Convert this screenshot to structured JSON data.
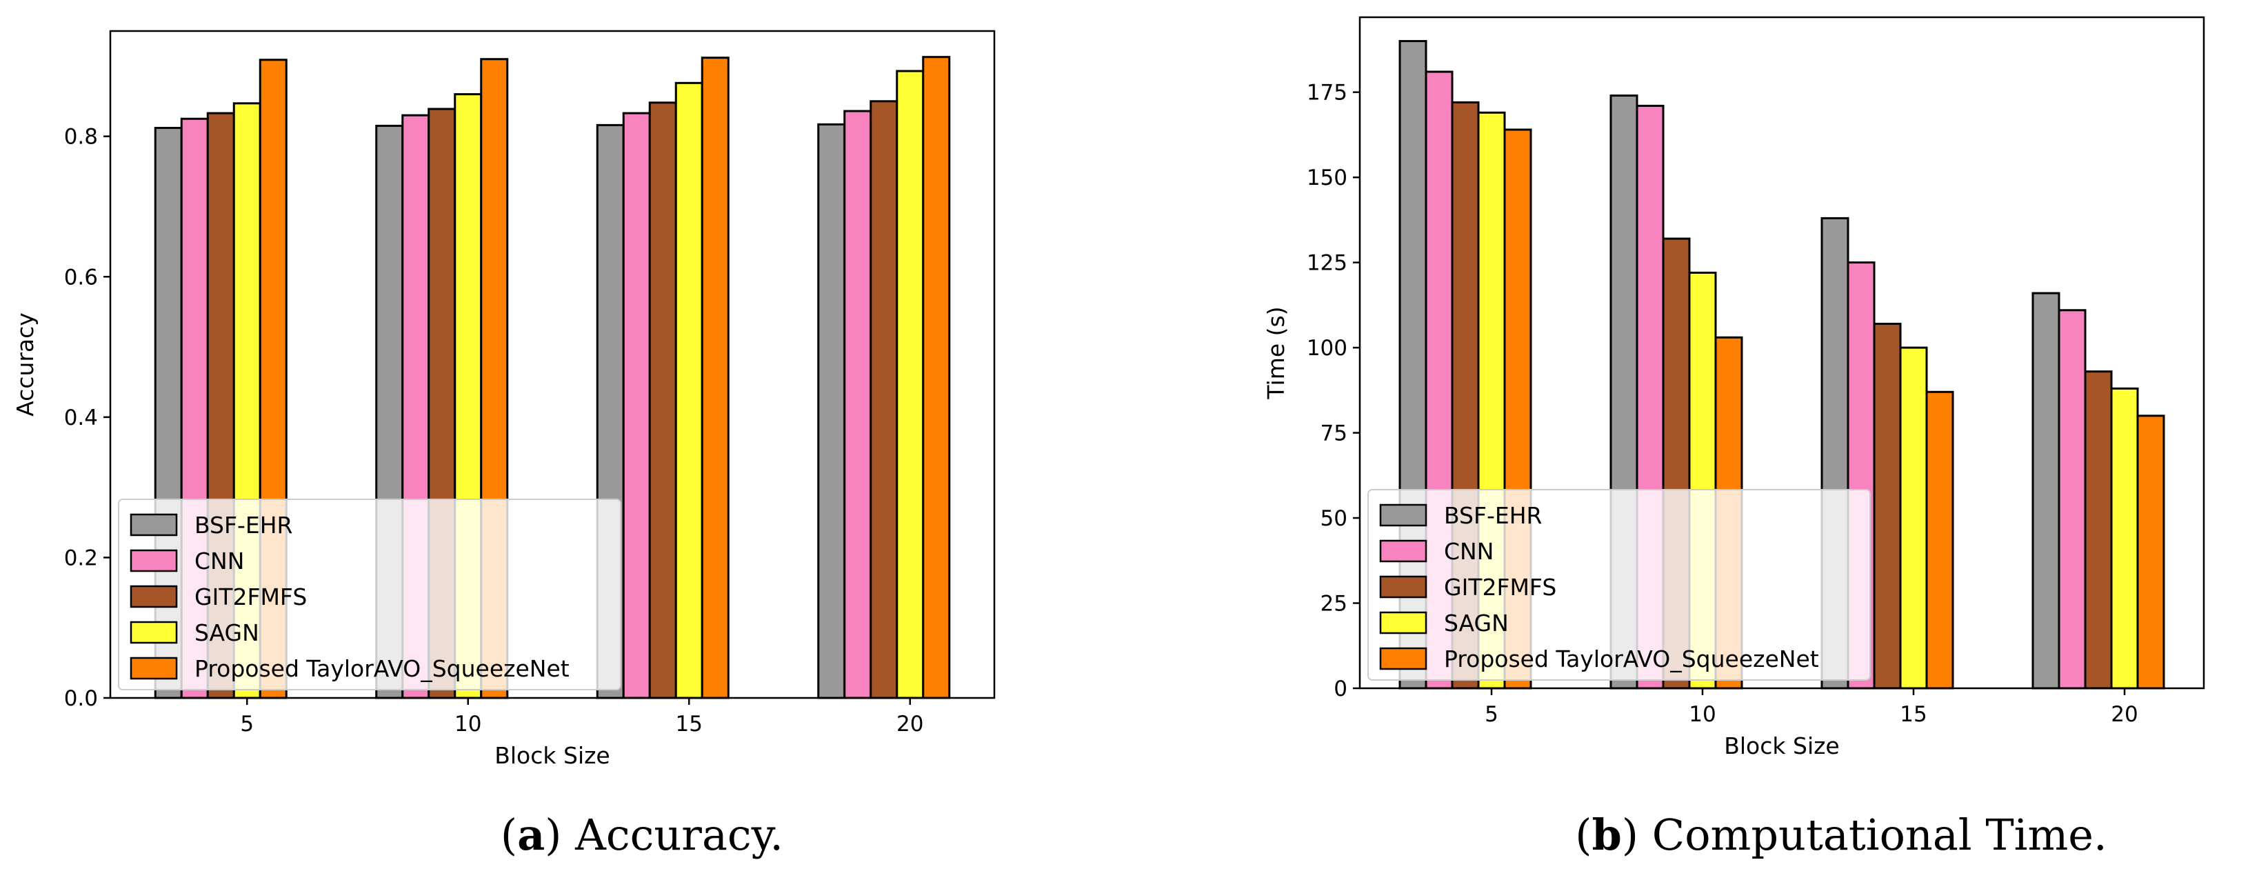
{
  "series_colors": [
    "#999999",
    "#f783bf",
    "#a65528",
    "#ffff33",
    "#ff7f00"
  ],
  "chart_data": [
    {
      "type": "bar",
      "panel": "a",
      "caption_letter": "a",
      "caption_text": "Accuracy.",
      "xlabel": "Block Size",
      "ylabel": "Accuracy",
      "categories": [
        "5",
        "10",
        "15",
        "20"
      ],
      "ylim": [
        0,
        0.95
      ],
      "yticks": [
        0.0,
        0.2,
        0.4,
        0.6,
        0.8
      ],
      "ytick_labels": [
        "0.0",
        "0.2",
        "0.4",
        "0.6",
        "0.8"
      ],
      "legend_position": "lower-left",
      "series": [
        {
          "name": "BSF-EHR",
          "values": [
            0.812,
            0.815,
            0.816,
            0.817
          ]
        },
        {
          "name": "CNN",
          "values": [
            0.825,
            0.83,
            0.833,
            0.836
          ]
        },
        {
          "name": "GIT2FMFS",
          "values": [
            0.833,
            0.839,
            0.848,
            0.85
          ]
        },
        {
          "name": "SAGN",
          "values": [
            0.847,
            0.86,
            0.876,
            0.893
          ]
        },
        {
          "name": "Proposed TaylorAVO_SqueezeNet",
          "values": [
            0.909,
            0.91,
            0.912,
            0.913
          ]
        }
      ]
    },
    {
      "type": "bar",
      "panel": "b",
      "caption_letter": "b",
      "caption_text": "Computational Time.",
      "xlabel": "Block Size",
      "ylabel": "Time (s)",
      "categories": [
        "5",
        "10",
        "15",
        "20"
      ],
      "ylim": [
        0,
        197
      ],
      "yticks": [
        0,
        25,
        50,
        75,
        100,
        125,
        150,
        175
      ],
      "ytick_labels": [
        "0",
        "25",
        "50",
        "75",
        "100",
        "125",
        "150",
        "175"
      ],
      "legend_position": "lower-left",
      "series": [
        {
          "name": "BSF-EHR",
          "values": [
            190,
            174,
            138,
            116
          ]
        },
        {
          "name": "CNN",
          "values": [
            181,
            171,
            125,
            111
          ]
        },
        {
          "name": "GIT2FMFS",
          "values": [
            172,
            132,
            107,
            93
          ]
        },
        {
          "name": "SAGN",
          "values": [
            169,
            122,
            100,
            88
          ]
        },
        {
          "name": "Proposed TaylorAVO_SqueezeNet",
          "values": [
            164,
            103,
            87,
            80
          ]
        }
      ]
    }
  ]
}
